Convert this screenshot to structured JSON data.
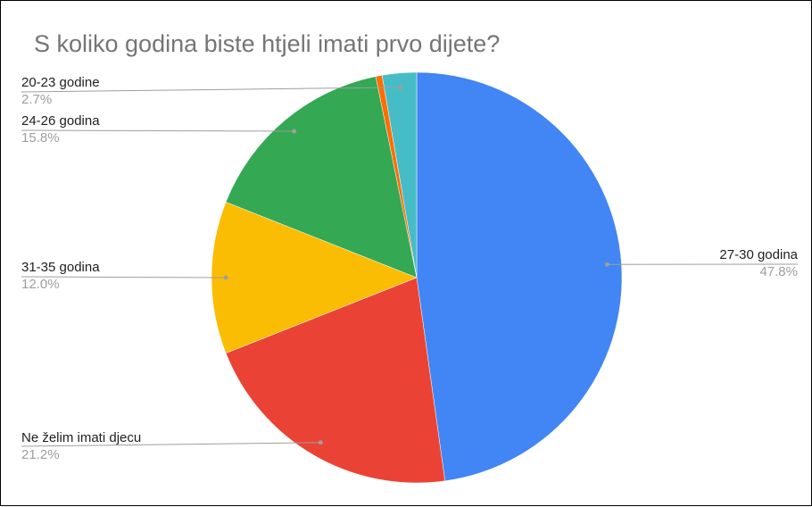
{
  "chart_data": {
    "type": "pie",
    "title": "S koliko godina biste htjeli imati prvo dijete?",
    "slices": [
      {
        "label": "27-30 godina",
        "value": 47.8,
        "value_label": "47.8%",
        "color": "#4285f4"
      },
      {
        "label": "Ne želim imati djecu",
        "value": 21.2,
        "value_label": "21.2%",
        "color": "#ea4335"
      },
      {
        "label": "31-35 godina",
        "value": 12.0,
        "value_label": "12.0%",
        "color": "#fbbc04"
      },
      {
        "label": "24-26 godina",
        "value": 15.8,
        "value_label": "15.8%",
        "color": "#34a853"
      },
      {
        "label": "",
        "value": 0.5,
        "value_label": "",
        "color": "#ff6d01"
      },
      {
        "label": "20-23 godine",
        "value": 2.7,
        "value_label": "2.7%",
        "color": "#46bdc6"
      }
    ],
    "legend": "labels on slices"
  }
}
